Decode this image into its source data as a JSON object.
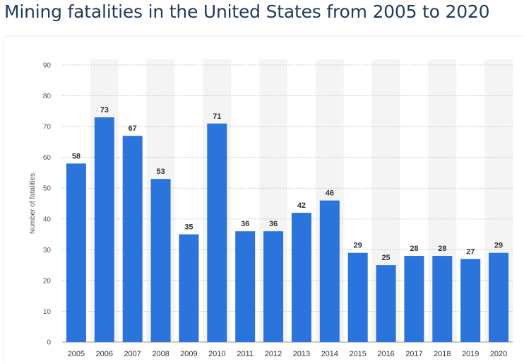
{
  "chart_data": {
    "type": "bar",
    "title": "Mining fatalities in the United States from 2005 to 2020",
    "xlabel": "",
    "ylabel": "Number of fatalities",
    "ylim": [
      0,
      90
    ],
    "yticks": [
      0,
      10,
      20,
      30,
      40,
      50,
      60,
      70,
      80,
      90
    ],
    "categories": [
      "2005",
      "2006",
      "2007",
      "2008",
      "2009",
      "2010",
      "2011",
      "2012",
      "2013",
      "2014",
      "2015",
      "2016",
      "2017",
      "2018",
      "2019",
      "2020"
    ],
    "values": [
      58,
      73,
      67,
      53,
      35,
      71,
      36,
      36,
      42,
      46,
      29,
      25,
      28,
      28,
      27,
      29
    ],
    "grid": true,
    "bar_color": "#2b74db",
    "stripe_color": "#f4f4f4"
  }
}
